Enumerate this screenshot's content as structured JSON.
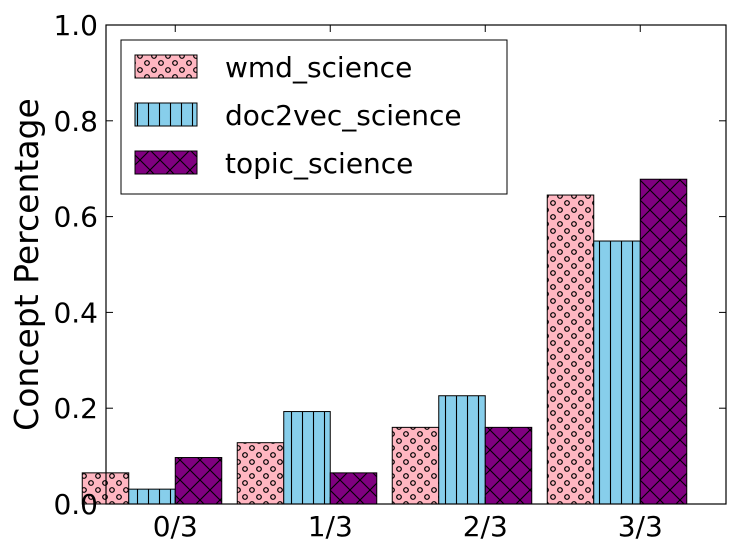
{
  "chart_data": {
    "type": "bar",
    "categories": [
      "0/3",
      "1/3",
      "2/3",
      "3/3"
    ],
    "series": [
      {
        "name": "wmd_science",
        "values": [
          0.065,
          0.128,
          0.16,
          0.645
        ],
        "color": "#ffb6c1",
        "pattern": "circles"
      },
      {
        "name": "doc2vec_science",
        "values": [
          0.031,
          0.193,
          0.226,
          0.549
        ],
        "color": "#87ceeb",
        "pattern": "vertical-lines"
      },
      {
        "name": "topic_science",
        "values": [
          0.097,
          0.065,
          0.16,
          0.678
        ],
        "color": "#800080",
        "pattern": "crosshatch"
      }
    ],
    "ylabel": "Concept Percentage",
    "xlabel": "",
    "ylim": [
      0.0,
      1.0
    ],
    "yticks": [
      "0.0",
      "0.2",
      "0.4",
      "0.6",
      "0.8",
      "1.0"
    ],
    "legend_position": "top-left",
    "grid": false
  }
}
